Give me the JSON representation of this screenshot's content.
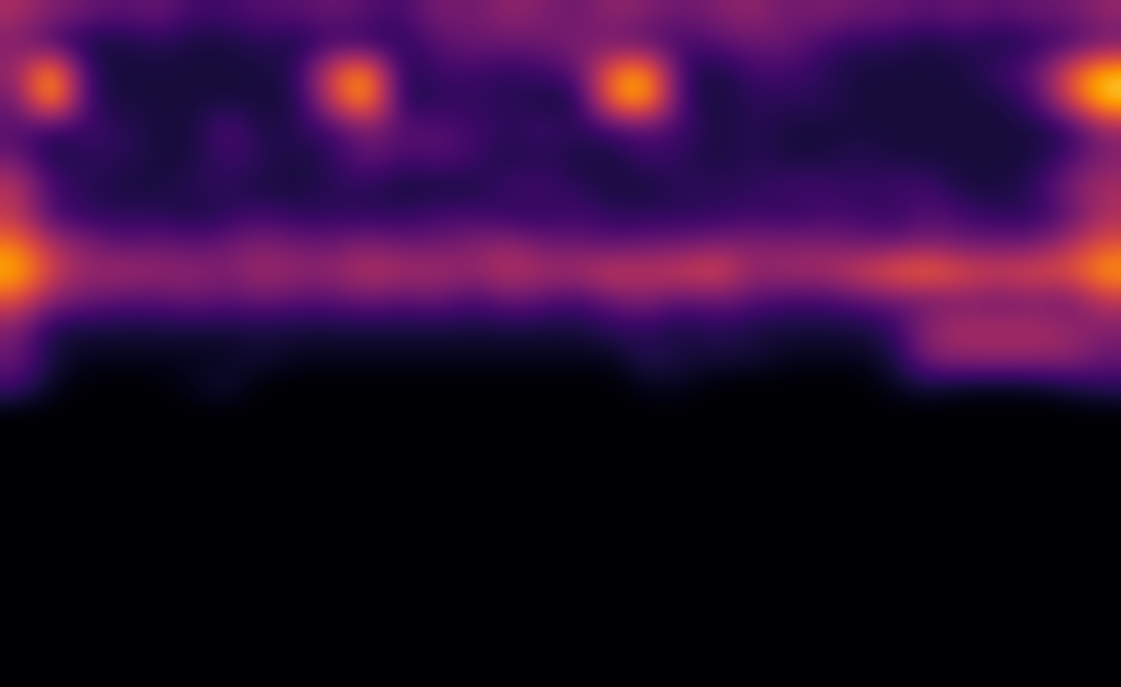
{
  "chart_data": {
    "type": "heatmap",
    "color": "inferno",
    "tick_labels": false,
    "grid": false,
    "value_range": [
      0,
      100
    ],
    "cells": [
      [
        45,
        35,
        30,
        25,
        30,
        20,
        20,
        25,
        25,
        30,
        25,
        20,
        35,
        30,
        40,
        35,
        30,
        40,
        35,
        30,
        35,
        40,
        30,
        35,
        30,
        30,
        25,
        30,
        25,
        30,
        30,
        40
      ],
      [
        35,
        20,
        10,
        10,
        15,
        10,
        10,
        15,
        10,
        20,
        15,
        15,
        25,
        30,
        30,
        30,
        35,
        30,
        25,
        20,
        25,
        30,
        30,
        20,
        15,
        15,
        10,
        15,
        10,
        15,
        20,
        30
      ],
      [
        40,
        85,
        15,
        10,
        10,
        10,
        10,
        10,
        15,
        60,
        80,
        10,
        20,
        20,
        15,
        20,
        25,
        70,
        80,
        15,
        10,
        20,
        20,
        15,
        10,
        10,
        10,
        10,
        20,
        25,
        60,
        85
      ],
      [
        30,
        90,
        15,
        10,
        10,
        10,
        10,
        10,
        10,
        55,
        85,
        10,
        15,
        15,
        15,
        10,
        10,
        75,
        85,
        15,
        10,
        15,
        15,
        15,
        10,
        10,
        10,
        10,
        10,
        20,
        55,
        90
      ],
      [
        25,
        15,
        20,
        15,
        10,
        10,
        25,
        10,
        15,
        20,
        35,
        25,
        25,
        20,
        15,
        20,
        15,
        20,
        25,
        20,
        10,
        15,
        10,
        10,
        10,
        10,
        10,
        10,
        10,
        10,
        15,
        40
      ],
      [
        30,
        10,
        15,
        15,
        10,
        10,
        20,
        15,
        10,
        15,
        30,
        20,
        25,
        20,
        10,
        15,
        10,
        10,
        20,
        15,
        10,
        15,
        10,
        10,
        15,
        10,
        10,
        10,
        10,
        10,
        20,
        35
      ],
      [
        50,
        20,
        15,
        10,
        10,
        15,
        15,
        10,
        10,
        15,
        15,
        10,
        10,
        10,
        20,
        20,
        15,
        10,
        10,
        15,
        15,
        15,
        20,
        20,
        15,
        20,
        20,
        10,
        10,
        15,
        35,
        45
      ],
      [
        50,
        20,
        15,
        15,
        15,
        10,
        15,
        20,
        15,
        15,
        15,
        15,
        20,
        20,
        15,
        15,
        20,
        15,
        15,
        15,
        15,
        20,
        15,
        20,
        20,
        15,
        25,
        20,
        15,
        15,
        25,
        45
      ],
      [
        70,
        45,
        35,
        25,
        30,
        25,
        30,
        35,
        30,
        30,
        35,
        30,
        30,
        35,
        40,
        30,
        30,
        25,
        30,
        30,
        35,
        35,
        35,
        35,
        30,
        30,
        35,
        30,
        30,
        30,
        45,
        60
      ],
      [
        85,
        55,
        40,
        45,
        40,
        40,
        35,
        45,
        40,
        40,
        50,
        45,
        45,
        40,
        50,
        45,
        45,
        55,
        50,
        55,
        60,
        40,
        45,
        45,
        55,
        65,
        70,
        60,
        55,
        60,
        60,
        80
      ],
      [
        60,
        35,
        30,
        25,
        25,
        30,
        25,
        30,
        25,
        25,
        30,
        25,
        30,
        20,
        30,
        25,
        20,
        30,
        35,
        25,
        30,
        25,
        20,
        20,
        25,
        30,
        30,
        35,
        30,
        35,
        30,
        50
      ],
      [
        35,
        10,
        10,
        10,
        10,
        10,
        10,
        10,
        10,
        10,
        10,
        10,
        10,
        10,
        10,
        10,
        10,
        15,
        15,
        10,
        15,
        10,
        10,
        10,
        10,
        15,
        40,
        45,
        45,
        45,
        40,
        35
      ],
      [
        30,
        10,
        5,
        5,
        5,
        5,
        5,
        10,
        5,
        5,
        5,
        5,
        5,
        5,
        5,
        5,
        5,
        5,
        15,
        10,
        10,
        10,
        5,
        5,
        5,
        10,
        35,
        40,
        40,
        40,
        40,
        30
      ],
      [
        20,
        5,
        0,
        0,
        0,
        5,
        10,
        0,
        0,
        0,
        0,
        0,
        0,
        0,
        0,
        0,
        0,
        0,
        5,
        5,
        0,
        0,
        0,
        0,
        0,
        5,
        10,
        5,
        5,
        5,
        10,
        15
      ],
      [
        0,
        0,
        0,
        0,
        0,
        0,
        0,
        0,
        0,
        0,
        0,
        0,
        0,
        0,
        0,
        0,
        0,
        0,
        0,
        0,
        0,
        0,
        0,
        0,
        0,
        0,
        0,
        0,
        0,
        0,
        0,
        0
      ],
      [
        0,
        0,
        0,
        0,
        0,
        0,
        0,
        0,
        0,
        0,
        0,
        0,
        0,
        0,
        0,
        0,
        0,
        0,
        0,
        0,
        0,
        0,
        0,
        0,
        0,
        0,
        0,
        0,
        0,
        0,
        0,
        0
      ],
      [
        0,
        0,
        0,
        0,
        0,
        0,
        0,
        0,
        0,
        0,
        0,
        0,
        0,
        0,
        0,
        0,
        0,
        0,
        0,
        0,
        0,
        0,
        0,
        0,
        0,
        0,
        0,
        0,
        0,
        0,
        0,
        0
      ],
      [
        0,
        0,
        0,
        0,
        0,
        0,
        0,
        0,
        0,
        0,
        0,
        0,
        0,
        0,
        0,
        0,
        0,
        0,
        0,
        0,
        0,
        0,
        0,
        0,
        0,
        0,
        0,
        0,
        0,
        0,
        0,
        0
      ],
      [
        0,
        0,
        0,
        0,
        0,
        0,
        0,
        0,
        0,
        0,
        0,
        0,
        0,
        0,
        0,
        0,
        0,
        0,
        0,
        0,
        0,
        0,
        0,
        0,
        0,
        0,
        0,
        0,
        0,
        0,
        0,
        0
      ],
      [
        0,
        0,
        0,
        0,
        0,
        0,
        0,
        0,
        0,
        0,
        0,
        0,
        0,
        0,
        0,
        0,
        0,
        0,
        0,
        0,
        0,
        0,
        0,
        0,
        0,
        0,
        0,
        0,
        0,
        0,
        0,
        0
      ],
      [
        0,
        0,
        0,
        0,
        0,
        0,
        0,
        0,
        0,
        0,
        0,
        0,
        0,
        0,
        0,
        0,
        0,
        0,
        0,
        0,
        0,
        0,
        0,
        0,
        0,
        0,
        0,
        0,
        0,
        0,
        0,
        0
      ],
      [
        0,
        0,
        0,
        0,
        0,
        0,
        0,
        0,
        0,
        0,
        0,
        0,
        0,
        0,
        0,
        0,
        0,
        0,
        0,
        0,
        0,
        0,
        0,
        0,
        0,
        0,
        0,
        0,
        0,
        0,
        0,
        0
      ],
      [
        0,
        0,
        0,
        0,
        0,
        0,
        0,
        0,
        0,
        0,
        0,
        0,
        0,
        0,
        0,
        0,
        0,
        0,
        0,
        0,
        0,
        0,
        0,
        0,
        0,
        0,
        0,
        0,
        0,
        0,
        0,
        0
      ],
      [
        0,
        0,
        0,
        0,
        0,
        0,
        0,
        0,
        0,
        0,
        0,
        0,
        0,
        0,
        0,
        0,
        0,
        0,
        0,
        0,
        0,
        0,
        0,
        0,
        0,
        0,
        0,
        0,
        0,
        0,
        0,
        0
      ]
    ]
  }
}
